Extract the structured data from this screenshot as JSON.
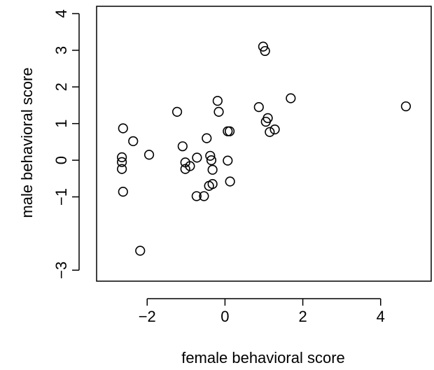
{
  "chart_data": {
    "type": "scatter",
    "title": "",
    "xlabel": "female behavioral score",
    "ylabel": "male behavioral score",
    "xlim": [
      -3.3,
      5.3
    ],
    "ylim": [
      -3.3,
      4.2
    ],
    "x_ticks": [
      -2,
      0,
      2,
      4
    ],
    "x_tick_labels": [
      "−2",
      "0",
      "2",
      "4"
    ],
    "y_ticks": [
      -3,
      -1,
      0,
      1,
      2,
      3,
      4
    ],
    "y_tick_labels": [
      "−3",
      "−1",
      "0",
      "1",
      "2",
      "3",
      "4"
    ],
    "marker": "open-circle",
    "grid": false,
    "legend": "none",
    "series": [
      {
        "points": [
          {
            "x": 0.98,
            "y": 3.1
          },
          {
            "x": 1.03,
            "y": 2.98
          },
          {
            "x": -0.19,
            "y": 1.62
          },
          {
            "x": 1.69,
            "y": 1.69
          },
          {
            "x": 4.65,
            "y": 1.47
          },
          {
            "x": 0.87,
            "y": 1.45
          },
          {
            "x": -1.23,
            "y": 1.32
          },
          {
            "x": -0.16,
            "y": 1.32
          },
          {
            "x": 1.1,
            "y": 1.15
          },
          {
            "x": 1.05,
            "y": 1.05
          },
          {
            "x": -2.62,
            "y": 0.87
          },
          {
            "x": 1.28,
            "y": 0.84
          },
          {
            "x": 0.07,
            "y": 0.79
          },
          {
            "x": 0.12,
            "y": 0.79
          },
          {
            "x": 1.15,
            "y": 0.77
          },
          {
            "x": -0.47,
            "y": 0.6
          },
          {
            "x": -2.36,
            "y": 0.52
          },
          {
            "x": -1.09,
            "y": 0.38
          },
          {
            "x": -1.95,
            "y": 0.15
          },
          {
            "x": -0.38,
            "y": 0.12
          },
          {
            "x": -2.65,
            "y": 0.08
          },
          {
            "x": -0.72,
            "y": 0.07
          },
          {
            "x": -0.35,
            "y": 0.0
          },
          {
            "x": 0.07,
            "y": -0.01
          },
          {
            "x": -2.65,
            "y": -0.05
          },
          {
            "x": -1.02,
            "y": -0.06
          },
          {
            "x": -0.9,
            "y": -0.16
          },
          {
            "x": -2.65,
            "y": -0.24
          },
          {
            "x": -1.02,
            "y": -0.24
          },
          {
            "x": -0.32,
            "y": -0.26
          },
          {
            "x": 0.13,
            "y": -0.58
          },
          {
            "x": -0.32,
            "y": -0.65
          },
          {
            "x": -0.41,
            "y": -0.7
          },
          {
            "x": -2.62,
            "y": -0.86
          },
          {
            "x": -0.73,
            "y": -0.98
          },
          {
            "x": -0.54,
            "y": -0.98
          },
          {
            "x": -2.18,
            "y": -2.47
          }
        ]
      }
    ]
  }
}
